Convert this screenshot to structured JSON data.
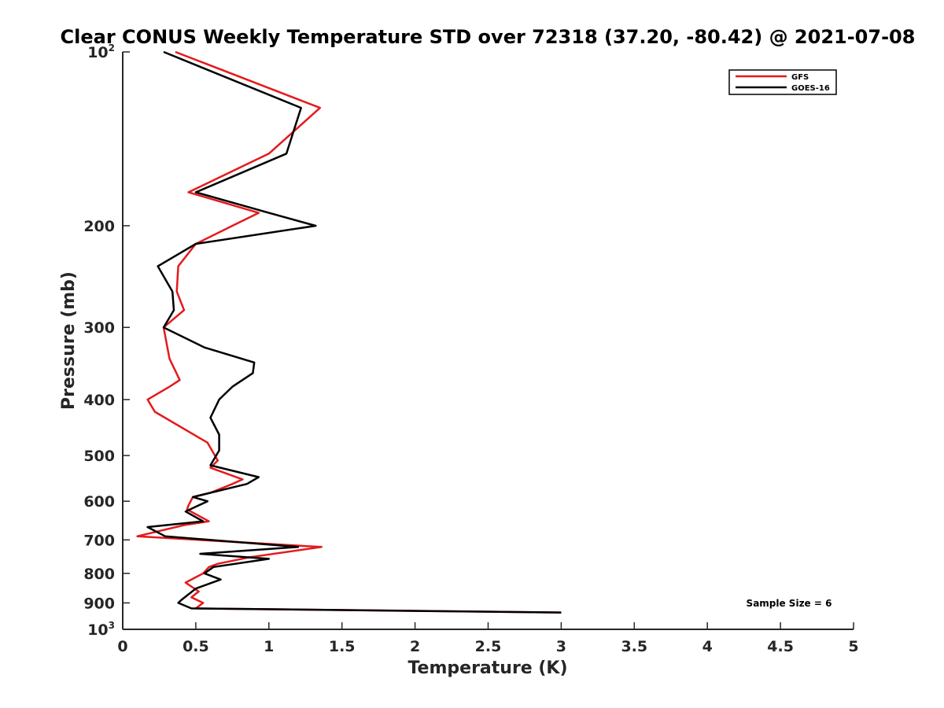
{
  "chart_data": {
    "type": "line",
    "title": "Clear CONUS Weekly Temperature STD over 72318 (37.20, -80.42) @ 2021-07-08",
    "xlabel": "Temperature (K)",
    "ylabel": "Pressure (mb)",
    "xlim": [
      0,
      5
    ],
    "ylim": [
      100,
      1000
    ],
    "y_scale": "log",
    "y_reversed": true,
    "grid": false,
    "legend_position": "top-right",
    "x_ticks": [
      "0",
      "0.5",
      "1",
      "1.5",
      "2",
      "2.5",
      "3",
      "3.5",
      "4",
      "4.5",
      "5"
    ],
    "y_ticks": [
      {
        "value": 100,
        "base": "10",
        "exp": "2"
      },
      {
        "value": 200,
        "label": "200"
      },
      {
        "value": 300,
        "label": "300"
      },
      {
        "value": 400,
        "label": "400"
      },
      {
        "value": 500,
        "label": "500"
      },
      {
        "value": 600,
        "label": "600"
      },
      {
        "value": 700,
        "label": "700"
      },
      {
        "value": 800,
        "label": "800"
      },
      {
        "value": 900,
        "label": "900"
      },
      {
        "value": 1000,
        "base": "10",
        "exp": "3"
      }
    ],
    "series": [
      {
        "name": "GFS",
        "color": "#e41a1c",
        "points": [
          [
            0.36,
            100
          ],
          [
            1.35,
            125
          ],
          [
            1.0,
            150
          ],
          [
            0.45,
            175
          ],
          [
            0.93,
            190
          ],
          [
            0.75,
            200
          ],
          [
            0.5,
            215
          ],
          [
            0.38,
            235
          ],
          [
            0.37,
            260
          ],
          [
            0.42,
            280
          ],
          [
            0.28,
            300
          ],
          [
            0.32,
            340
          ],
          [
            0.39,
            370
          ],
          [
            0.32,
            380
          ],
          [
            0.17,
            400
          ],
          [
            0.22,
            420
          ],
          [
            0.58,
            475
          ],
          [
            0.65,
            510
          ],
          [
            0.6,
            525
          ],
          [
            0.82,
            550
          ],
          [
            0.75,
            560
          ],
          [
            0.6,
            580
          ],
          [
            0.48,
            590
          ],
          [
            0.45,
            610
          ],
          [
            0.44,
            620
          ],
          [
            0.59,
            650
          ],
          [
            0.42,
            660
          ],
          [
            0.1,
            690
          ],
          [
            1.36,
            720
          ],
          [
            0.87,
            750
          ],
          [
            0.65,
            770
          ],
          [
            0.59,
            780
          ],
          [
            0.55,
            800
          ],
          [
            0.43,
            830
          ],
          [
            0.52,
            860
          ],
          [
            0.47,
            880
          ],
          [
            0.55,
            900
          ],
          [
            0.5,
            920
          ],
          [
            3.0,
            935
          ]
        ]
      },
      {
        "name": "GOES-16",
        "color": "#000000",
        "points": [
          [
            0.28,
            100
          ],
          [
            1.22,
            125
          ],
          [
            1.12,
            150
          ],
          [
            0.5,
            175
          ],
          [
            1.0,
            190
          ],
          [
            1.32,
            200
          ],
          [
            0.5,
            215
          ],
          [
            0.24,
            235
          ],
          [
            0.34,
            260
          ],
          [
            0.35,
            280
          ],
          [
            0.28,
            300
          ],
          [
            0.56,
            325
          ],
          [
            0.9,
            345
          ],
          [
            0.89,
            360
          ],
          [
            0.75,
            380
          ],
          [
            0.66,
            400
          ],
          [
            0.6,
            430
          ],
          [
            0.66,
            460
          ],
          [
            0.66,
            490
          ],
          [
            0.6,
            520
          ],
          [
            0.93,
            545
          ],
          [
            0.85,
            560
          ],
          [
            0.48,
            590
          ],
          [
            0.58,
            600
          ],
          [
            0.43,
            625
          ],
          [
            0.55,
            650
          ],
          [
            0.17,
            665
          ],
          [
            0.29,
            690
          ],
          [
            1.2,
            720
          ],
          [
            0.53,
            740
          ],
          [
            1.0,
            755
          ],
          [
            0.62,
            780
          ],
          [
            0.56,
            800
          ],
          [
            0.67,
            820
          ],
          [
            0.5,
            850
          ],
          [
            0.4,
            890
          ],
          [
            0.38,
            900
          ],
          [
            0.47,
            920
          ],
          [
            3.0,
            935
          ]
        ]
      }
    ],
    "annotations": [
      {
        "text": "Sample Size = 6"
      }
    ]
  }
}
